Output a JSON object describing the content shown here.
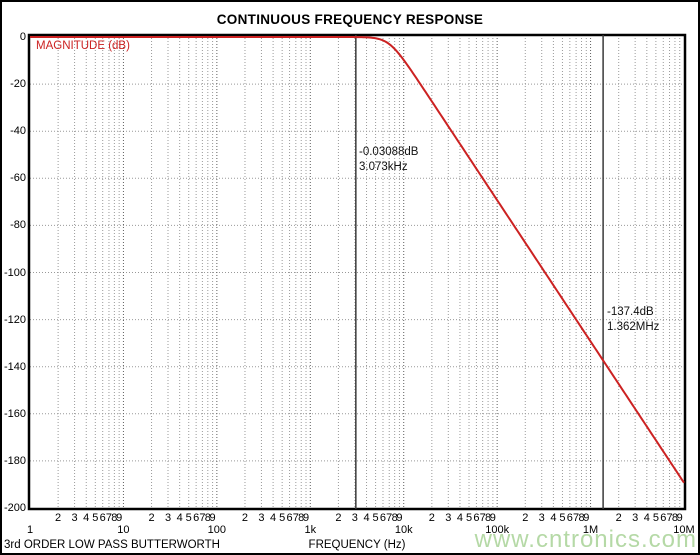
{
  "title": "CONTINUOUS FREQUENCY RESPONSE",
  "caption_left": "3rd ORDER LOW PASS BUTTERWORTH",
  "watermark": "www.cntronics.com",
  "colors": {
    "curve": "#cc2222",
    "magnitude_label": "#cc2222",
    "cursor_line": "#3a3a3a",
    "grid_minor": "#9a9a9a",
    "grid_decade": "#5f5f5f",
    "grid_horizontal": "#999999",
    "frame": "#000000",
    "watermark": "#b5d9a6",
    "annotation_text": "#111111"
  },
  "chart_data": {
    "type": "line",
    "title": "CONTINUOUS FREQUENCY RESPONSE",
    "xlabel": "FREQUENCY (Hz)",
    "ylabel": "MAGNITUDE (dB)",
    "x_scale": "log",
    "x_range_hz": [
      1,
      10000000
    ],
    "x_decade_labels": [
      "1",
      "10",
      "100",
      "1k",
      "10k",
      "100k",
      "1M",
      "10M"
    ],
    "x_minor_labels": [
      "2",
      "3",
      "4",
      "5",
      "6",
      "7",
      "8",
      "9"
    ],
    "y_ticks": [
      0,
      -20,
      -40,
      -60,
      -80,
      -100,
      -120,
      -140,
      -160,
      -180,
      -200
    ],
    "ylim": [
      -200,
      0
    ],
    "grid": true,
    "legend": "none",
    "series": [
      {
        "name": "3rd order low pass Butterworth magnitude",
        "filter_order": 3,
        "cutoff_hz": 7005,
        "points_hz_db": [
          [
            1,
            0
          ],
          [
            100,
            0
          ],
          [
            1000,
            -0.0001
          ],
          [
            3073,
            -0.03088
          ],
          [
            7005,
            -3.01
          ],
          [
            10000,
            -9.76
          ],
          [
            20000,
            -27.3
          ],
          [
            100000,
            -69.3
          ],
          [
            1000000,
            -129.3
          ],
          [
            1362000,
            -137.4
          ],
          [
            10000000,
            -189.3
          ]
        ]
      }
    ],
    "cursors": [
      {
        "freq_hz": 3073,
        "value_label": "-0.03088dB",
        "freq_label": "3.073kHz"
      },
      {
        "freq_hz": 1362000,
        "value_label": "-137.4dB",
        "freq_label": "1.362MHz"
      }
    ]
  }
}
